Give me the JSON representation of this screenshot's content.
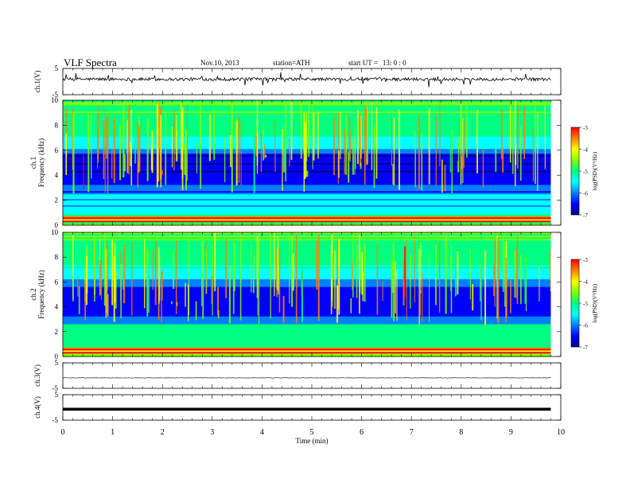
{
  "header": {
    "title": "VLF  Spectra",
    "date": "Nov.10, 2013",
    "station": "station=ATH",
    "start_label": "start  UT  =",
    "start_value": "13: 0  : 0"
  },
  "chart_data": {
    "type": "heatmap",
    "xlabel": "Time  (min)",
    "xlim": [
      0,
      10
    ],
    "x_ticks": [
      "0",
      "1",
      "2",
      "3",
      "4",
      "5",
      "6",
      "7",
      "8",
      "9",
      "10"
    ],
    "panels": [
      {
        "id": "ch1-wave",
        "type": "line",
        "ylabel": "ch.1(V)",
        "ylim": [
          -5,
          5
        ],
        "y_ticks": [
          "5",
          "-5"
        ],
        "baseline": 0.9,
        "noise": "high"
      },
      {
        "id": "ch1-spec",
        "type": "heatmap",
        "ylabel": "ch.1\nFrequency  (kHz)",
        "ylim": [
          0,
          10
        ],
        "y_ticks": [
          "0",
          "2",
          "4",
          "6",
          "8",
          "10"
        ],
        "colorbar": {
          "label": "log(PSD)(V²/Hz)",
          "range": [
            -7,
            -3
          ],
          "ticks": [
            "-3",
            "-4",
            "-5",
            "-6",
            "-7"
          ]
        }
      },
      {
        "id": "ch2-spec",
        "type": "heatmap",
        "ylabel": "ch.2\nFrequency  (kHz)",
        "ylim": [
          0,
          10
        ],
        "y_ticks": [
          "0",
          "2",
          "4",
          "6",
          "8",
          "10"
        ],
        "colorbar": {
          "label": "log(PSD)(V²/Hz)",
          "range": [
            -7,
            -3
          ],
          "ticks": [
            "-3",
            "-4",
            "-5",
            "-6",
            "-7"
          ]
        }
      },
      {
        "id": "ch3-wave",
        "type": "line",
        "ylabel": "ch.3(V)",
        "ylim": [
          -5,
          5
        ],
        "y_ticks": [
          "5",
          "-5"
        ],
        "baseline": -0.9,
        "noise": "low"
      },
      {
        "id": "ch4-wave",
        "type": "line",
        "ylabel": "ch.4(V)",
        "ylim": [
          -5,
          5
        ],
        "y_ticks": [
          "5",
          "-5"
        ],
        "baseline": -0.7,
        "noise": "flat"
      }
    ],
    "data_end_min": 9.8,
    "colormap": [
      "#000080",
      "#0000ff",
      "#0080ff",
      "#00ffff",
      "#00ff80",
      "#80ff00",
      "#ffff00",
      "#ff8000",
      "#ff0000"
    ]
  }
}
